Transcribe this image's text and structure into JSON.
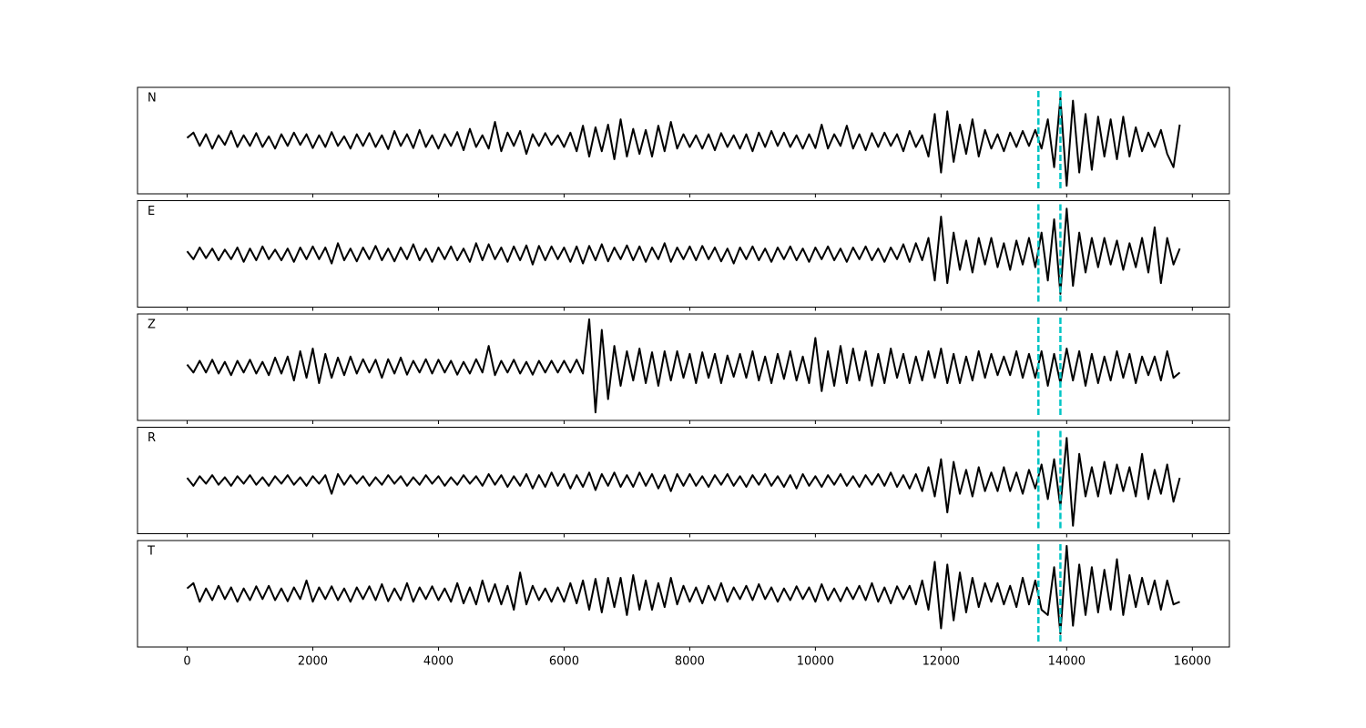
{
  "chart_data": {
    "type": "line",
    "x": [
      0,
      100,
      200,
      300,
      400,
      500,
      600,
      700,
      800,
      900,
      1000,
      1100,
      1200,
      1300,
      1400,
      1500,
      1600,
      1700,
      1800,
      1900,
      2000,
      2100,
      2200,
      2300,
      2400,
      2500,
      2600,
      2700,
      2800,
      2900,
      3000,
      3100,
      3200,
      3300,
      3400,
      3500,
      3600,
      3700,
      3800,
      3900,
      4000,
      4100,
      4200,
      4300,
      4400,
      4500,
      4600,
      4700,
      4800,
      4900,
      5000,
      5100,
      5200,
      5300,
      5400,
      5500,
      5600,
      5700,
      5800,
      5900,
      6000,
      6100,
      6200,
      6300,
      6400,
      6500,
      6600,
      6700,
      6800,
      6900,
      7000,
      7100,
      7200,
      7300,
      7400,
      7500,
      7600,
      7700,
      7800,
      7900,
      8000,
      8100,
      8200,
      8300,
      8400,
      8500,
      8600,
      8700,
      8800,
      8900,
      9000,
      9100,
      9200,
      9300,
      9400,
      9500,
      9600,
      9700,
      9800,
      9900,
      10000,
      10100,
      10200,
      10300,
      10400,
      10500,
      10600,
      10700,
      10800,
      10900,
      11000,
      11100,
      11200,
      11300,
      11400,
      11500,
      11600,
      11700,
      11800,
      11900,
      12000,
      12100,
      12200,
      12300,
      12400,
      12500,
      12600,
      12700,
      12800,
      12900,
      13000,
      13100,
      13200,
      13300,
      13400,
      13500,
      13600,
      13700,
      13800,
      13900,
      14000,
      14100,
      14200,
      14300,
      14400,
      14500,
      14600,
      14700,
      14800,
      14900,
      15000,
      15100,
      15200,
      15300,
      15400,
      15500,
      15600,
      15700,
      15800
    ],
    "xlim": [
      -790,
      16590
    ],
    "xticks": [
      0,
      2000,
      4000,
      6000,
      8000,
      10000,
      12000,
      14000,
      16000
    ],
    "ylim": [
      -1,
      1
    ],
    "series": [
      {
        "name": "N",
        "color": "#000000",
        "values": [
          0.05,
          0.15,
          -0.1,
          0.12,
          -0.15,
          0.1,
          -0.08,
          0.18,
          -0.12,
          0.1,
          -0.1,
          0.14,
          -0.12,
          0.08,
          -0.15,
          0.12,
          -0.1,
          0.15,
          -0.08,
          0.12,
          -0.14,
          0.1,
          -0.12,
          0.16,
          -0.1,
          0.08,
          -0.15,
          0.12,
          -0.1,
          0.14,
          -0.12,
          0.1,
          -0.16,
          0.18,
          -0.1,
          0.12,
          -0.14,
          0.2,
          -0.12,
          0.1,
          -0.15,
          0.12,
          -0.1,
          0.16,
          -0.18,
          0.22,
          -0.12,
          0.1,
          -0.15,
          0.35,
          -0.2,
          0.15,
          -0.1,
          0.18,
          -0.25,
          0.12,
          -0.1,
          0.14,
          -0.08,
          0.1,
          -0.12,
          0.15,
          -0.2,
          0.28,
          -0.3,
          0.25,
          -0.2,
          0.3,
          -0.35,
          0.4,
          -0.3,
          0.22,
          -0.25,
          0.2,
          -0.3,
          0.28,
          -0.2,
          0.35,
          -0.15,
          0.12,
          -0.12,
          0.1,
          -0.15,
          0.12,
          -0.18,
          0.14,
          -0.12,
          0.1,
          -0.15,
          0.12,
          -0.2,
          0.15,
          -0.12,
          0.18,
          -0.1,
          0.15,
          -0.12,
          0.1,
          -0.15,
          0.12,
          -0.14,
          0.3,
          -0.15,
          0.12,
          -0.1,
          0.28,
          -0.15,
          0.12,
          -0.18,
          0.14,
          -0.12,
          0.15,
          -0.1,
          0.12,
          -0.2,
          0.18,
          -0.12,
          0.1,
          -0.3,
          0.5,
          -0.6,
          0.55,
          -0.4,
          0.3,
          -0.25,
          0.4,
          -0.3,
          0.2,
          -0.15,
          0.12,
          -0.2,
          0.15,
          -0.12,
          0.18,
          -0.1,
          0.2,
          -0.15,
          0.4,
          -0.5,
          0.8,
          -0.85,
          0.75,
          -0.6,
          0.5,
          -0.55,
          0.45,
          -0.3,
          0.4,
          -0.35,
          0.45,
          -0.3,
          0.25,
          -0.2,
          0.15,
          -0.12,
          0.2,
          -0.25,
          -0.5,
          0.3
        ]
      },
      {
        "name": "E",
        "color": "#000000",
        "values": [
          0.05,
          -0.1,
          0.12,
          -0.08,
          0.1,
          -0.12,
          0.08,
          -0.1,
          0.12,
          -0.15,
          0.1,
          -0.12,
          0.14,
          -0.1,
          0.08,
          -0.12,
          0.1,
          -0.15,
          0.12,
          -0.1,
          0.14,
          -0.1,
          0.12,
          -0.18,
          0.2,
          -0.12,
          0.1,
          -0.14,
          0.12,
          -0.1,
          0.15,
          -0.12,
          0.1,
          -0.14,
          0.12,
          -0.1,
          0.18,
          -0.12,
          0.1,
          -0.15,
          0.12,
          -0.1,
          0.14,
          -0.12,
          0.1,
          -0.15,
          0.2,
          -0.12,
          0.18,
          -0.1,
          0.12,
          -0.15,
          0.14,
          -0.12,
          0.16,
          -0.2,
          0.15,
          -0.12,
          0.14,
          -0.1,
          0.12,
          -0.15,
          0.14,
          -0.18,
          0.15,
          -0.12,
          0.18,
          -0.14,
          0.12,
          -0.1,
          0.16,
          -0.12,
          0.14,
          -0.15,
          0.12,
          -0.1,
          0.2,
          -0.15,
          0.12,
          -0.1,
          0.14,
          -0.12,
          0.15,
          -0.1,
          0.12,
          -0.14,
          0.1,
          -0.18,
          0.12,
          -0.1,
          0.14,
          -0.12,
          0.1,
          -0.15,
          0.12,
          -0.1,
          0.14,
          -0.12,
          0.1,
          -0.15,
          0.12,
          -0.1,
          0.14,
          -0.12,
          0.1,
          -0.15,
          0.12,
          -0.1,
          0.14,
          -0.12,
          0.1,
          -0.15,
          0.12,
          -0.1,
          0.18,
          -0.15,
          0.2,
          -0.12,
          0.3,
          -0.5,
          0.7,
          -0.55,
          0.4,
          -0.3,
          0.25,
          -0.35,
          0.3,
          -0.2,
          0.3,
          -0.25,
          0.2,
          -0.3,
          0.25,
          -0.2,
          0.3,
          -0.25,
          0.4,
          -0.5,
          0.65,
          -0.75,
          0.85,
          -0.6,
          0.4,
          -0.35,
          0.3,
          -0.25,
          0.3,
          -0.2,
          0.25,
          -0.3,
          0.2,
          -0.25,
          0.3,
          -0.35,
          0.5,
          -0.55,
          0.3,
          -0.2,
          0.1
        ]
      },
      {
        "name": "Z",
        "color": "#000000",
        "values": [
          0.05,
          -0.1,
          0.12,
          -0.1,
          0.14,
          -0.12,
          0.1,
          -0.15,
          0.12,
          -0.1,
          0.14,
          -0.12,
          0.1,
          -0.15,
          0.18,
          -0.12,
          0.2,
          -0.25,
          0.3,
          -0.2,
          0.35,
          -0.3,
          0.25,
          -0.2,
          0.18,
          -0.15,
          0.2,
          -0.12,
          0.15,
          -0.1,
          0.14,
          -0.2,
          0.15,
          -0.12,
          0.18,
          -0.14,
          0.12,
          -0.1,
          0.15,
          -0.12,
          0.14,
          -0.1,
          0.12,
          -0.14,
          0.1,
          -0.12,
          0.15,
          -0.1,
          0.4,
          -0.15,
          0.12,
          -0.1,
          0.14,
          -0.12,
          0.1,
          -0.14,
          0.12,
          -0.1,
          0.12,
          -0.1,
          0.12,
          -0.1,
          0.14,
          -0.12,
          0.9,
          -0.85,
          0.7,
          -0.6,
          0.4,
          -0.35,
          0.3,
          -0.25,
          0.35,
          -0.3,
          0.28,
          -0.35,
          0.3,
          -0.25,
          0.3,
          -0.2,
          0.25,
          -0.3,
          0.28,
          -0.2,
          0.25,
          -0.3,
          0.22,
          -0.18,
          0.25,
          -0.2,
          0.3,
          -0.25,
          0.2,
          -0.3,
          0.25,
          -0.22,
          0.3,
          -0.25,
          0.2,
          -0.3,
          0.55,
          -0.45,
          0.3,
          -0.35,
          0.4,
          -0.3,
          0.35,
          -0.25,
          0.3,
          -0.35,
          0.25,
          -0.3,
          0.35,
          -0.2,
          0.25,
          -0.3,
          0.2,
          -0.25,
          0.3,
          -0.2,
          0.35,
          -0.3,
          0.25,
          -0.3,
          0.2,
          -0.25,
          0.3,
          -0.2,
          0.25,
          -0.15,
          0.2,
          -0.15,
          0.3,
          -0.2,
          0.25,
          -0.2,
          0.3,
          -0.35,
          0.25,
          -0.3,
          0.35,
          -0.25,
          0.3,
          -0.35,
          0.25,
          -0.3,
          0.2,
          -0.25,
          0.3,
          -0.2,
          0.25,
          -0.3,
          0.2,
          -0.15,
          0.2,
          -0.25,
          0.3,
          -0.2,
          -0.1
        ]
      },
      {
        "name": "R",
        "color": "#000000",
        "values": [
          0.05,
          -0.1,
          0.08,
          -0.06,
          0.1,
          -0.08,
          0.06,
          -0.1,
          0.08,
          -0.06,
          0.1,
          -0.08,
          0.06,
          -0.1,
          0.08,
          -0.06,
          0.1,
          -0.08,
          0.06,
          -0.1,
          0.08,
          -0.06,
          0.1,
          -0.25,
          0.12,
          -0.08,
          0.1,
          -0.06,
          0.08,
          -0.1,
          0.06,
          -0.08,
          0.1,
          -0.06,
          0.08,
          -0.1,
          0.06,
          -0.08,
          0.1,
          -0.06,
          0.08,
          -0.1,
          0.06,
          -0.08,
          0.1,
          -0.06,
          0.08,
          -0.1,
          0.12,
          -0.08,
          0.1,
          -0.12,
          0.08,
          -0.1,
          0.12,
          -0.15,
          0.1,
          -0.12,
          0.15,
          -0.1,
          0.12,
          -0.15,
          0.1,
          -0.12,
          0.15,
          -0.18,
          0.12,
          -0.1,
          0.15,
          -0.12,
          0.1,
          -0.12,
          0.15,
          -0.1,
          0.12,
          -0.15,
          0.1,
          -0.2,
          0.12,
          -0.1,
          0.12,
          -0.1,
          0.08,
          -0.12,
          0.1,
          -0.08,
          0.12,
          -0.1,
          0.08,
          -0.12,
          0.1,
          -0.08,
          0.12,
          -0.1,
          0.08,
          -0.12,
          0.1,
          -0.15,
          0.12,
          -0.1,
          0.08,
          -0.12,
          0.1,
          -0.08,
          0.12,
          -0.1,
          0.08,
          -0.12,
          0.1,
          -0.08,
          0.12,
          -0.1,
          0.15,
          -0.12,
          0.1,
          -0.15,
          0.12,
          -0.2,
          0.25,
          -0.3,
          0.4,
          -0.6,
          0.35,
          -0.25,
          0.2,
          -0.3,
          0.25,
          -0.2,
          0.15,
          -0.2,
          0.25,
          -0.2,
          0.15,
          -0.25,
          0.2,
          -0.15,
          0.3,
          -0.35,
          0.4,
          -0.5,
          0.8,
          -0.85,
          0.5,
          -0.3,
          0.25,
          -0.3,
          0.35,
          -0.25,
          0.3,
          -0.2,
          0.25,
          -0.3,
          0.5,
          -0.35,
          0.2,
          -0.25,
          0.3,
          -0.4,
          0.05
        ]
      },
      {
        "name": "T",
        "color": "#000000",
        "values": [
          0.1,
          0.2,
          -0.15,
          0.1,
          -0.12,
          0.15,
          -0.1,
          0.12,
          -0.15,
          0.1,
          -0.12,
          0.14,
          -0.1,
          0.15,
          -0.12,
          0.1,
          -0.14,
          0.12,
          -0.1,
          0.25,
          -0.15,
          0.12,
          -0.1,
          0.14,
          -0.12,
          0.1,
          -0.15,
          0.12,
          -0.1,
          0.14,
          -0.12,
          0.18,
          -0.14,
          0.1,
          -0.12,
          0.2,
          -0.15,
          0.12,
          -0.1,
          0.14,
          -0.12,
          0.1,
          -0.15,
          0.2,
          -0.18,
          0.12,
          -0.2,
          0.25,
          -0.15,
          0.18,
          -0.2,
          0.15,
          -0.3,
          0.4,
          -0.2,
          0.15,
          -0.12,
          0.1,
          -0.15,
          0.12,
          -0.15,
          0.2,
          -0.18,
          0.25,
          -0.3,
          0.28,
          -0.35,
          0.3,
          -0.25,
          0.3,
          -0.4,
          0.35,
          -0.3,
          0.25,
          -0.3,
          0.2,
          -0.25,
          0.3,
          -0.2,
          0.15,
          -0.15,
          0.12,
          -0.18,
          0.15,
          -0.12,
          0.2,
          -0.15,
          0.12,
          -0.1,
          0.15,
          -0.12,
          0.18,
          -0.1,
          0.12,
          -0.15,
          0.1,
          -0.12,
          0.14,
          -0.1,
          0.12,
          -0.15,
          0.18,
          -0.12,
          0.1,
          -0.14,
          0.12,
          -0.1,
          0.15,
          -0.12,
          0.2,
          -0.15,
          0.12,
          -0.18,
          0.14,
          -0.1,
          0.15,
          -0.2,
          0.25,
          -0.3,
          0.6,
          -0.65,
          0.55,
          -0.5,
          0.4,
          -0.35,
          0.3,
          -0.25,
          0.2,
          -0.15,
          0.2,
          -0.2,
          0.15,
          -0.25,
          0.3,
          -0.2,
          0.25,
          -0.3,
          -0.4,
          0.5,
          -0.75,
          0.9,
          -0.6,
          0.55,
          -0.4,
          0.5,
          -0.35,
          0.45,
          -0.3,
          0.65,
          -0.4,
          0.35,
          -0.25,
          0.3,
          -0.2,
          0.25,
          -0.3,
          0.25,
          -0.2,
          -0.15
        ]
      }
    ],
    "picks": {
      "values": [
        13550,
        13900
      ],
      "color": "#00c5c5"
    }
  }
}
